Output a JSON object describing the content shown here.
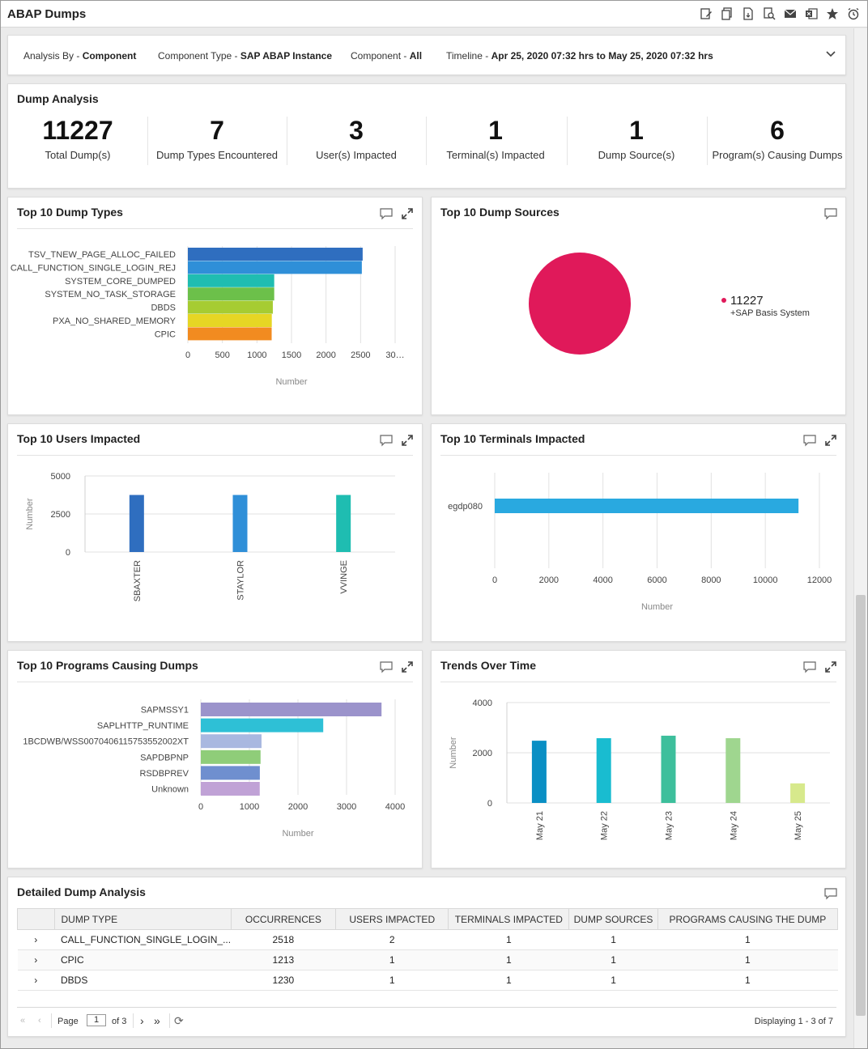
{
  "titlebar": {
    "title": "ABAP Dumps",
    "icons": [
      "edit-report-icon",
      "copy-report-icon",
      "export-pdf-icon",
      "preview-icon",
      "email-icon",
      "export-excel-icon",
      "favorite-star-icon",
      "schedule-alarm-icon"
    ]
  },
  "filters": {
    "analysis_by_label": "Analysis By - ",
    "analysis_by_value": "Component",
    "component_type_label": "Component Type - ",
    "component_type_value": "SAP ABAP Instance",
    "component_label": "Component - ",
    "component_value": "All",
    "timeline_label": "Timeline - ",
    "timeline_value": "Apr 25, 2020 07:32 hrs to May 25, 2020 07:32 hrs"
  },
  "dump_analysis": {
    "title": "Dump Analysis",
    "kpis": [
      {
        "value": "11227",
        "label": "Total Dump(s)"
      },
      {
        "value": "7",
        "label": "Dump Types Encountered"
      },
      {
        "value": "3",
        "label": "User(s) Impacted"
      },
      {
        "value": "1",
        "label": "Terminal(s) Impacted"
      },
      {
        "value": "1",
        "label": "Dump Source(s)"
      },
      {
        "value": "6",
        "label": "Program(s) Causing Dumps"
      }
    ]
  },
  "panels": {
    "dump_types_title": "Top 10 Dump Types",
    "dump_sources_title": "Top 10 Dump Sources",
    "users_title": "Top 10 Users Impacted",
    "terminals_title": "Top 10 Terminals Impacted",
    "programs_title": "Top 10 Programs Causing Dumps",
    "trends_title": "Trends Over Time"
  },
  "chart_data": [
    {
      "id": "dump-types",
      "type": "bar",
      "orientation": "horizontal",
      "categories": [
        "TSV_TNEW_PAGE_ALLOC_FAILED",
        "CALL_FUNCTION_SINGLE_LOGIN_REJ",
        "SYSTEM_CORE_DUMPED",
        "SYSTEM_NO_TASK_STORAGE",
        "DBDS",
        "PXA_NO_SHARED_MEMORY",
        "CPIC"
      ],
      "values": [
        2530,
        2518,
        1250,
        1250,
        1230,
        1215,
        1213
      ],
      "colors": [
        "#2f6ebf",
        "#2f8fd8",
        "#1fbdb1",
        "#6cc04a",
        "#a6cc32",
        "#e6d624",
        "#f28b20"
      ],
      "xticks": [
        "0",
        "500",
        "1000",
        "1500",
        "2000",
        "2500",
        "30…"
      ],
      "xlim": [
        0,
        3000
      ],
      "xlabel": "Number"
    },
    {
      "id": "dump-sources",
      "type": "pie",
      "values": [
        11227
      ],
      "legend": [
        {
          "value": "11227",
          "label": "+SAP Basis System",
          "color": "#e0195a"
        }
      ]
    },
    {
      "id": "users",
      "type": "bar",
      "categories": [
        "SBAXTER",
        "STAYLOR",
        "VVINGE"
      ],
      "values": [
        3750,
        3750,
        3750
      ],
      "colors": [
        "#2f6ebf",
        "#2f8fd8",
        "#1fbdb1"
      ],
      "yticks": [
        "5000",
        "2500",
        "0"
      ],
      "ylim": [
        0,
        5000
      ],
      "ylabel": "Number"
    },
    {
      "id": "terminals",
      "type": "bar",
      "orientation": "horizontal",
      "categories": [
        "egdp080"
      ],
      "values": [
        11227
      ],
      "colors": [
        "#29a9e0"
      ],
      "xticks": [
        "0",
        "2000",
        "4000",
        "6000",
        "8000",
        "10000",
        "12000"
      ],
      "xlim": [
        0,
        12000
      ],
      "xlabel": "Number"
    },
    {
      "id": "programs",
      "type": "bar",
      "orientation": "horizontal",
      "categories": [
        "SAPMSSY1",
        "SAPLHTTP_RUNTIME",
        "1BCDWB/WSS0070406115753552002XT",
        "SAPDBPNP",
        "RSDBPREV",
        "Unknown"
      ],
      "values": [
        3720,
        2520,
        1250,
        1230,
        1215,
        1213
      ],
      "colors": [
        "#9b93cb",
        "#2ec0d6",
        "#a9b8e0",
        "#8fcd79",
        "#6f8fcf",
        "#c0a2d6"
      ],
      "xticks": [
        "0",
        "1000",
        "2000",
        "3000",
        "4000"
      ],
      "xlim": [
        0,
        4000
      ],
      "xlabel": "Number"
    },
    {
      "id": "trends",
      "type": "bar",
      "categories": [
        "May 21",
        "May 22",
        "May 23",
        "May 24",
        "May 25"
      ],
      "values": [
        2480,
        2580,
        2680,
        2580,
        780
      ],
      "colors": [
        "#0a8fc4",
        "#19bcd0",
        "#3dbf9c",
        "#9fd68f",
        "#d7e98c"
      ],
      "yticks": [
        "4000",
        "2000",
        "0"
      ],
      "ylim": [
        0,
        4000
      ],
      "ylabel": "Number"
    }
  ],
  "table": {
    "title": "Detailed Dump Analysis",
    "columns": [
      "DUMP TYPE",
      "OCCURRENCES",
      "USERS IMPACTED",
      "TERMINALS IMPACTED",
      "DUMP SOURCES",
      "PROGRAMS CAUSING THE DUMP"
    ],
    "rows": [
      [
        "CALL_FUNCTION_SINGLE_LOGIN_...",
        "2518",
        "2",
        "1",
        "1",
        "1"
      ],
      [
        "CPIC",
        "1213",
        "1",
        "1",
        "1",
        "1"
      ],
      [
        "DBDS",
        "1230",
        "1",
        "1",
        "1",
        "1"
      ]
    ],
    "pager": {
      "page_label": "Page",
      "page_value": "1",
      "of_label": "of 3",
      "display_text": "Displaying 1 - 3 of 7"
    }
  }
}
